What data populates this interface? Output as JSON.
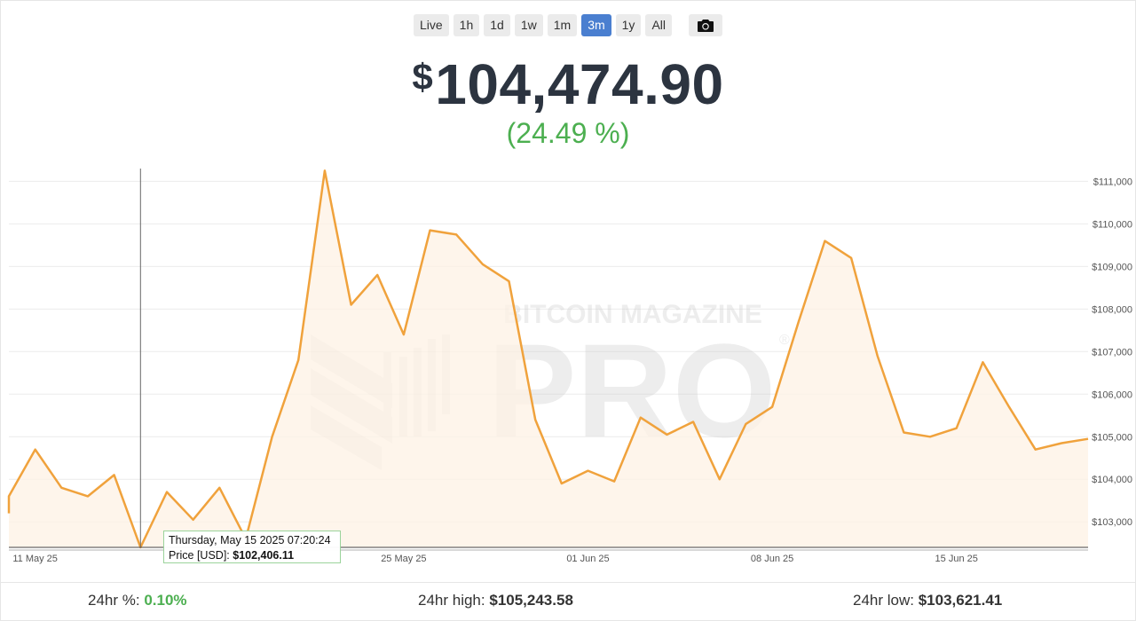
{
  "ranges": [
    "Live",
    "1h",
    "1d",
    "1w",
    "1m",
    "3m",
    "1y",
    "All"
  ],
  "active_range": "3m",
  "camera_icon": "camera-icon",
  "headline": {
    "currency": "$",
    "price": "104,474.90",
    "change": "(24.49 %)"
  },
  "watermark": {
    "top": "BITCOIN MAGAZINE",
    "main": "PRO",
    "mark": "®"
  },
  "tooltip": {
    "date": "Thursday, May 15 2025 07:20:24",
    "label": "Price [USD]:",
    "value": "$102,406.11"
  },
  "stats": {
    "pct_label": "24hr %:",
    "pct_value": "0.10%",
    "high_label": "24hr high:",
    "high_value": "$105,243.58",
    "low_label": "24hr low:",
    "low_value": "$103,621.41"
  },
  "colors": {
    "line": "#f0a23c",
    "fill": "#fdf1e4",
    "accent": "#4a7fd0",
    "positive": "#4caf50"
  },
  "chart_data": {
    "type": "area",
    "ylim": [
      102400,
      111300
    ],
    "y_ticks": [
      103000,
      104000,
      105000,
      106000,
      107000,
      108000,
      109000,
      110000,
      111000
    ],
    "y_tick_labels": [
      "$103,000",
      "$104,000",
      "$105,000",
      "$106,000",
      "$107,000",
      "$108,000",
      "$109,000",
      "$110,000",
      "$111,000"
    ],
    "x_range": [
      "2025-05-10",
      "2025-06-20"
    ],
    "x_ticks": [
      "2025-05-11",
      "2025-05-25",
      "2025-06-01",
      "2025-06-08",
      "2025-06-15"
    ],
    "x_tick_labels": [
      "11 May 25",
      "25 May 25",
      "01 Jun 25",
      "08 Jun 25",
      "15 Jun 25"
    ],
    "hover_date": "2025-05-15",
    "series": [
      {
        "x": [
          "2025-05-10",
          "2025-05-10",
          "2025-05-11",
          "2025-05-12",
          "2025-05-13",
          "2025-05-14",
          "2025-05-15",
          "2025-05-16",
          "2025-05-17",
          "2025-05-18",
          "2025-05-19",
          "2025-05-20",
          "2025-05-21",
          "2025-05-22",
          "2025-05-23",
          "2025-05-24",
          "2025-05-25",
          "2025-05-26",
          "2025-05-27",
          "2025-05-28",
          "2025-05-29",
          "2025-05-30",
          "2025-05-31",
          "2025-06-01",
          "2025-06-02",
          "2025-06-03",
          "2025-06-04",
          "2025-06-05",
          "2025-06-06",
          "2025-06-07",
          "2025-06-08",
          "2025-06-09",
          "2025-06-10",
          "2025-06-11",
          "2025-06-12",
          "2025-06-13",
          "2025-06-14",
          "2025-06-15",
          "2025-06-16",
          "2025-06-17",
          "2025-06-18",
          "2025-06-19",
          "2025-06-20"
        ],
        "values": [
          103200,
          103600,
          104700,
          103800,
          103600,
          104100,
          102400,
          103700,
          103050,
          103800,
          102600,
          105000,
          106800,
          111250,
          108100,
          108800,
          107400,
          109850,
          109750,
          109050,
          108650,
          105400,
          103900,
          104200,
          103950,
          105450,
          105050,
          105350,
          104000,
          105300,
          105700,
          107700,
          109600,
          109200,
          106900,
          105100,
          105000,
          105200,
          106750,
          105700,
          104700,
          104850,
          104950
        ]
      }
    ]
  }
}
